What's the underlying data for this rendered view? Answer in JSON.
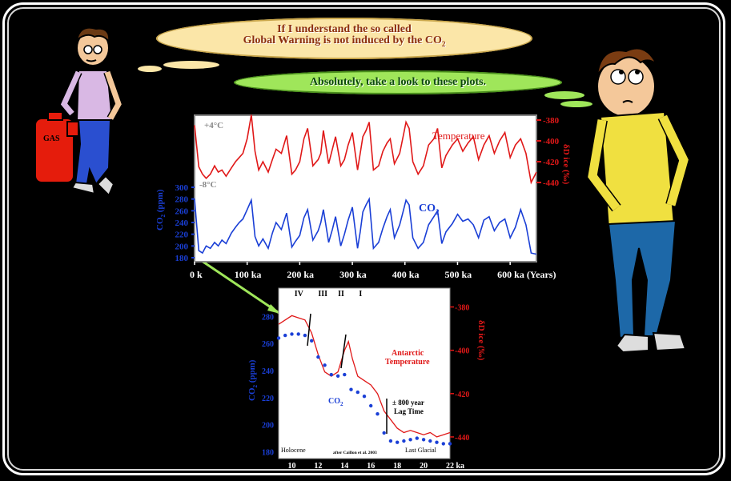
{
  "bubbles": {
    "speaker1_line1": "If I understand the so called",
    "speaker1_line2": "Global Warning is not induced by the CO",
    "speaker1_sub": "2",
    "speaker2": "Absolutely, take a look to these plots."
  },
  "props": {
    "gas_can_label": "GAS"
  },
  "colors": {
    "temperature": "#e01818",
    "co2": "#1a3fd6",
    "bubble1": "#fbe6a8",
    "bubble2": "#9fe65a"
  },
  "chart_data": [
    {
      "type": "line",
      "title": "",
      "x_axis": {
        "ticks": [
          "0 k",
          "100 ka",
          "200 ka",
          "300 ka",
          "400 ka",
          "500 ka",
          "600 ka (Years)"
        ],
        "range": [
          0,
          650
        ]
      },
      "temperature_labels": {
        "top": "+4°C",
        "bottom": "-8°C"
      },
      "right_axis": {
        "label": "δD ice (‰)",
        "ticks": [
          "-380",
          "-400",
          "-420",
          "-440"
        ],
        "range": [
          -440,
          -380
        ]
      },
      "left_axis": {
        "label": "CO2 (ppm)",
        "ticks": [
          "300",
          "280",
          "260",
          "240",
          "220",
          "200",
          "180"
        ],
        "range": [
          180,
          300
        ]
      },
      "series": [
        {
          "name": "Temperature",
          "axis": "right",
          "x": [
            0,
            8,
            15,
            22,
            30,
            38,
            45,
            52,
            60,
            70,
            78,
            85,
            92,
            100,
            108,
            115,
            122,
            130,
            140,
            148,
            155,
            165,
            175,
            185,
            192,
            200,
            208,
            215,
            225,
            235,
            240,
            245,
            255,
            262,
            268,
            278,
            285,
            292,
            300,
            310,
            315,
            320,
            326,
            332,
            340,
            350,
            358,
            366,
            372,
            380,
            390,
            398,
            402,
            408,
            415,
            425,
            435,
            445,
            455,
            462,
            470,
            478,
            490,
            500,
            510,
            520,
            530,
            540,
            550,
            560,
            570,
            580,
            590,
            600,
            610,
            620,
            630,
            640,
            650
          ],
          "values": [
            -385,
            -425,
            -432,
            -436,
            -432,
            -424,
            -430,
            -428,
            -434,
            -426,
            -420,
            -416,
            -412,
            -398,
            -375,
            -410,
            -428,
            -420,
            -430,
            -418,
            -408,
            -412,
            -395,
            -432,
            -428,
            -420,
            -398,
            -388,
            -424,
            -418,
            -412,
            -390,
            -422,
            -408,
            -396,
            -424,
            -418,
            -404,
            -392,
            -428,
            -412,
            -396,
            -390,
            -382,
            -428,
            -424,
            -410,
            -402,
            -398,
            -422,
            -412,
            -392,
            -382,
            -388,
            -420,
            -432,
            -424,
            -404,
            -398,
            -388,
            -426,
            -414,
            -404,
            -398,
            -410,
            -402,
            -396,
            -418,
            -404,
            -395,
            -412,
            -400,
            -392,
            -416,
            -404,
            -398,
            -412,
            -440,
            -430
          ]
        },
        {
          "name": "CO2",
          "axis": "left",
          "x": [
            0,
            8,
            15,
            22,
            30,
            38,
            45,
            52,
            60,
            70,
            78,
            85,
            92,
            100,
            108,
            115,
            122,
            130,
            140,
            148,
            155,
            165,
            175,
            185,
            192,
            200,
            208,
            215,
            225,
            235,
            240,
            245,
            255,
            262,
            268,
            278,
            285,
            292,
            300,
            310,
            315,
            320,
            326,
            332,
            340,
            350,
            358,
            366,
            372,
            380,
            390,
            398,
            402,
            408,
            415,
            425,
            435,
            445,
            455,
            462,
            470,
            478,
            490,
            500,
            510,
            520,
            530,
            540,
            550,
            560,
            570,
            580,
            590,
            600,
            610,
            620,
            630,
            640,
            650
          ],
          "values": [
            280,
            192,
            188,
            200,
            196,
            206,
            200,
            210,
            204,
            222,
            232,
            240,
            246,
            262,
            278,
            216,
            200,
            212,
            196,
            222,
            240,
            228,
            256,
            198,
            208,
            218,
            248,
            262,
            210,
            226,
            240,
            262,
            206,
            228,
            250,
            200,
            220,
            244,
            266,
            196,
            224,
            258,
            270,
            280,
            196,
            206,
            230,
            250,
            262,
            214,
            236,
            264,
            278,
            270,
            214,
            196,
            206,
            236,
            250,
            260,
            204,
            224,
            238,
            254,
            242,
            246,
            236,
            214,
            244,
            250,
            226,
            240,
            246,
            214,
            232,
            262,
            236,
            188,
            186
          ]
        }
      ]
    },
    {
      "type": "line",
      "title": "",
      "attribution": "after Caillon et al. 2003",
      "x_axis": {
        "ticks": [
          "10",
          "12",
          "14",
          "16",
          "18",
          "20",
          "22 ka"
        ],
        "range": [
          9,
          22
        ]
      },
      "left_axis": {
        "label": "CO2 (ppm)",
        "ticks": [
          "280",
          "260",
          "240",
          "220",
          "200",
          "180"
        ],
        "range": [
          175,
          295
        ]
      },
      "right_axis": {
        "label": "δD ice (‰)",
        "ticks": [
          "-380",
          "-400",
          "-420",
          "-440"
        ],
        "range": [
          -450,
          -375
        ]
      },
      "terminations": [
        "IV",
        "III",
        "II",
        "I"
      ],
      "labels": {
        "left": "Holocene",
        "right": "Last Glacial",
        "temperature": "Antarctic Temperature",
        "co2": "CO",
        "co2_sub": "2",
        "lag": "± 800 year Lag Time"
      },
      "series": [
        {
          "name": "Antarctic Temperature",
          "axis": "right",
          "x": [
            9,
            9.5,
            10,
            10.5,
            11,
            11.5,
            12,
            12.5,
            13,
            13.5,
            14,
            14.3,
            14.6,
            15,
            15.5,
            16,
            16.5,
            17,
            17.5,
            18,
            18.5,
            19,
            19.5,
            20,
            20.5,
            21,
            21.5,
            22
          ],
          "values": [
            -388,
            -386,
            -384,
            -385,
            -386,
            -392,
            -402,
            -410,
            -412,
            -410,
            -400,
            -396,
            -404,
            -412,
            -414,
            -416,
            -420,
            -428,
            -432,
            -436,
            -438,
            -437,
            -438,
            -439,
            -438,
            -440,
            -439,
            -438
          ]
        },
        {
          "name": "CO2",
          "axis": "left",
          "x": [
            9,
            9.5,
            10,
            10.5,
            11,
            11.5,
            12,
            12.5,
            13,
            13.5,
            14,
            14.5,
            15,
            15.5,
            16,
            16.5,
            17,
            17.5,
            18,
            18.5,
            19,
            19.5,
            20,
            20.5,
            21,
            21.5,
            22
          ],
          "values": [
            264,
            266,
            267,
            267,
            266,
            262,
            250,
            244,
            237,
            236,
            237,
            226,
            224,
            221,
            214,
            208,
            194,
            188,
            187,
            188,
            189,
            190,
            189,
            188,
            187,
            186,
            186
          ]
        }
      ]
    }
  ]
}
